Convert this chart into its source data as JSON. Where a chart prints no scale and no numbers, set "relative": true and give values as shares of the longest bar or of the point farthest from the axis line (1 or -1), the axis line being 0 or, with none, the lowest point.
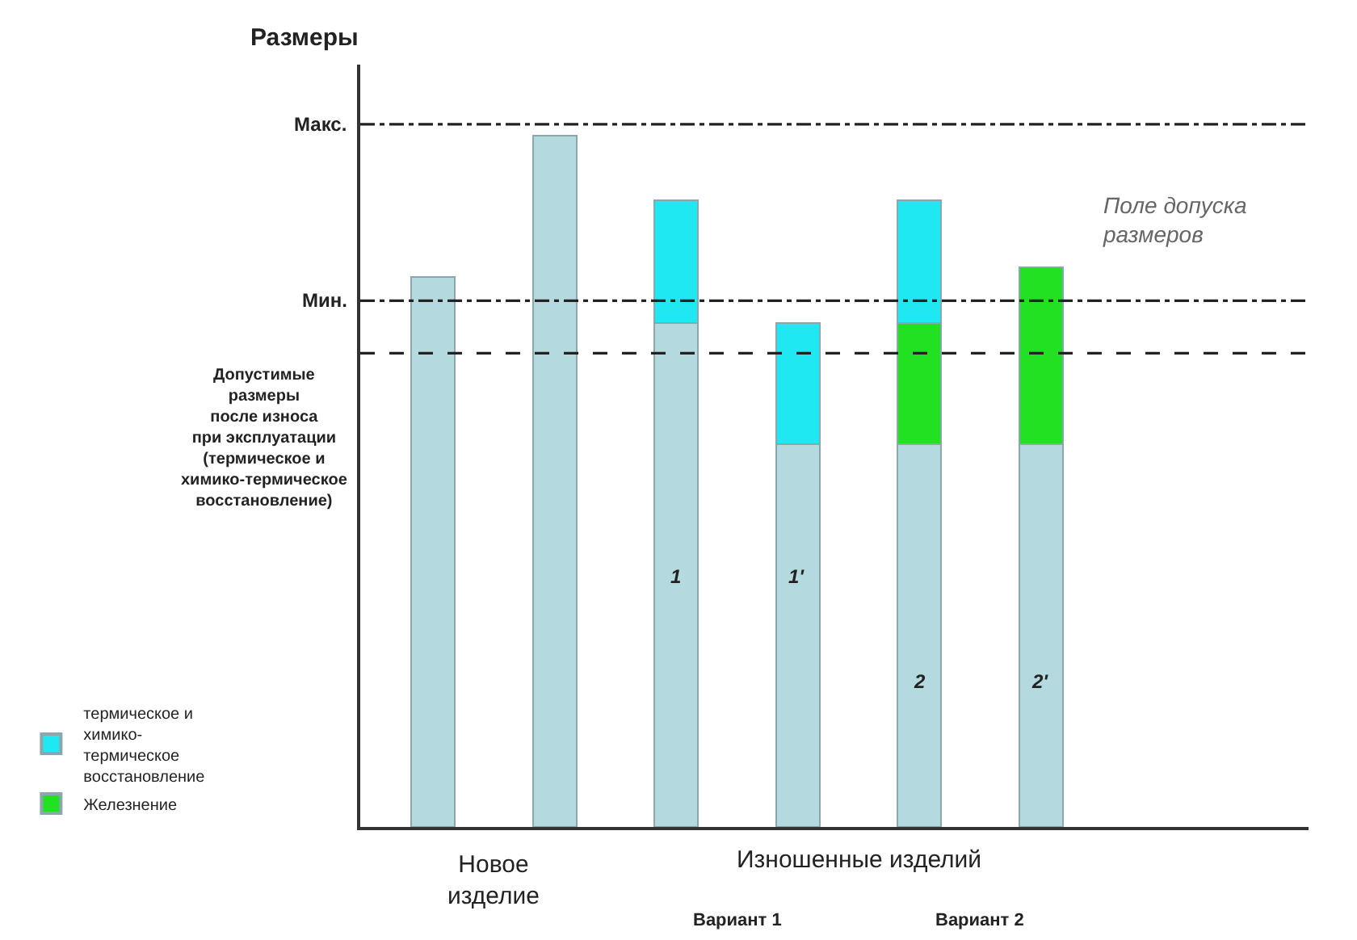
{
  "chart_data": {
    "type": "bar",
    "relative": true,
    "stacked": true,
    "ylabel": "Размеры",
    "categories": [
      null,
      null,
      null,
      null,
      null,
      null
    ],
    "series": [
      {
        "color": "#b4dadf",
        "values": [
          0.795,
          1,
          0.729,
          0.554,
          0.554,
          0.554
        ]
      },
      {
        "name": "Железнение",
        "color": "#22e022",
        "values": [
          null,
          null,
          null,
          null,
          0.175,
          0.255
        ]
      },
      {
        "name": "термическое и\nхимико-\nтермическое\nвосстановление",
        "color": "#1fe8f2",
        "values": [
          null,
          null,
          0.177,
          0.175,
          0.177,
          null
        ]
      }
    ],
    "ref_lines": [
      {
        "axis": "y",
        "value": 1.016,
        "label": "Макс.",
        "line_style": "dashdot",
        "color": "#222222"
      },
      {
        "axis": "y",
        "value": 0.761,
        "label": "Мин.",
        "line_style": "dashdot",
        "color": "#222222"
      },
      {
        "axis": "y",
        "value": 0.685,
        "label": "Допустимые\nразмеры\nпосле износа\nпри эксплуатации\n(термическое и\nхимико-термическое\nвосстановление)",
        "line_style": "dashed",
        "color": "#222222"
      }
    ],
    "annotations": [
      "Поле допуска\nразмеров",
      "1",
      "1'",
      "2",
      "2'",
      "Новое\nизделие",
      "Изношенные изделий",
      "Вариант 1",
      "Вариант 2"
    ],
    "legend": "bottom left"
  }
}
